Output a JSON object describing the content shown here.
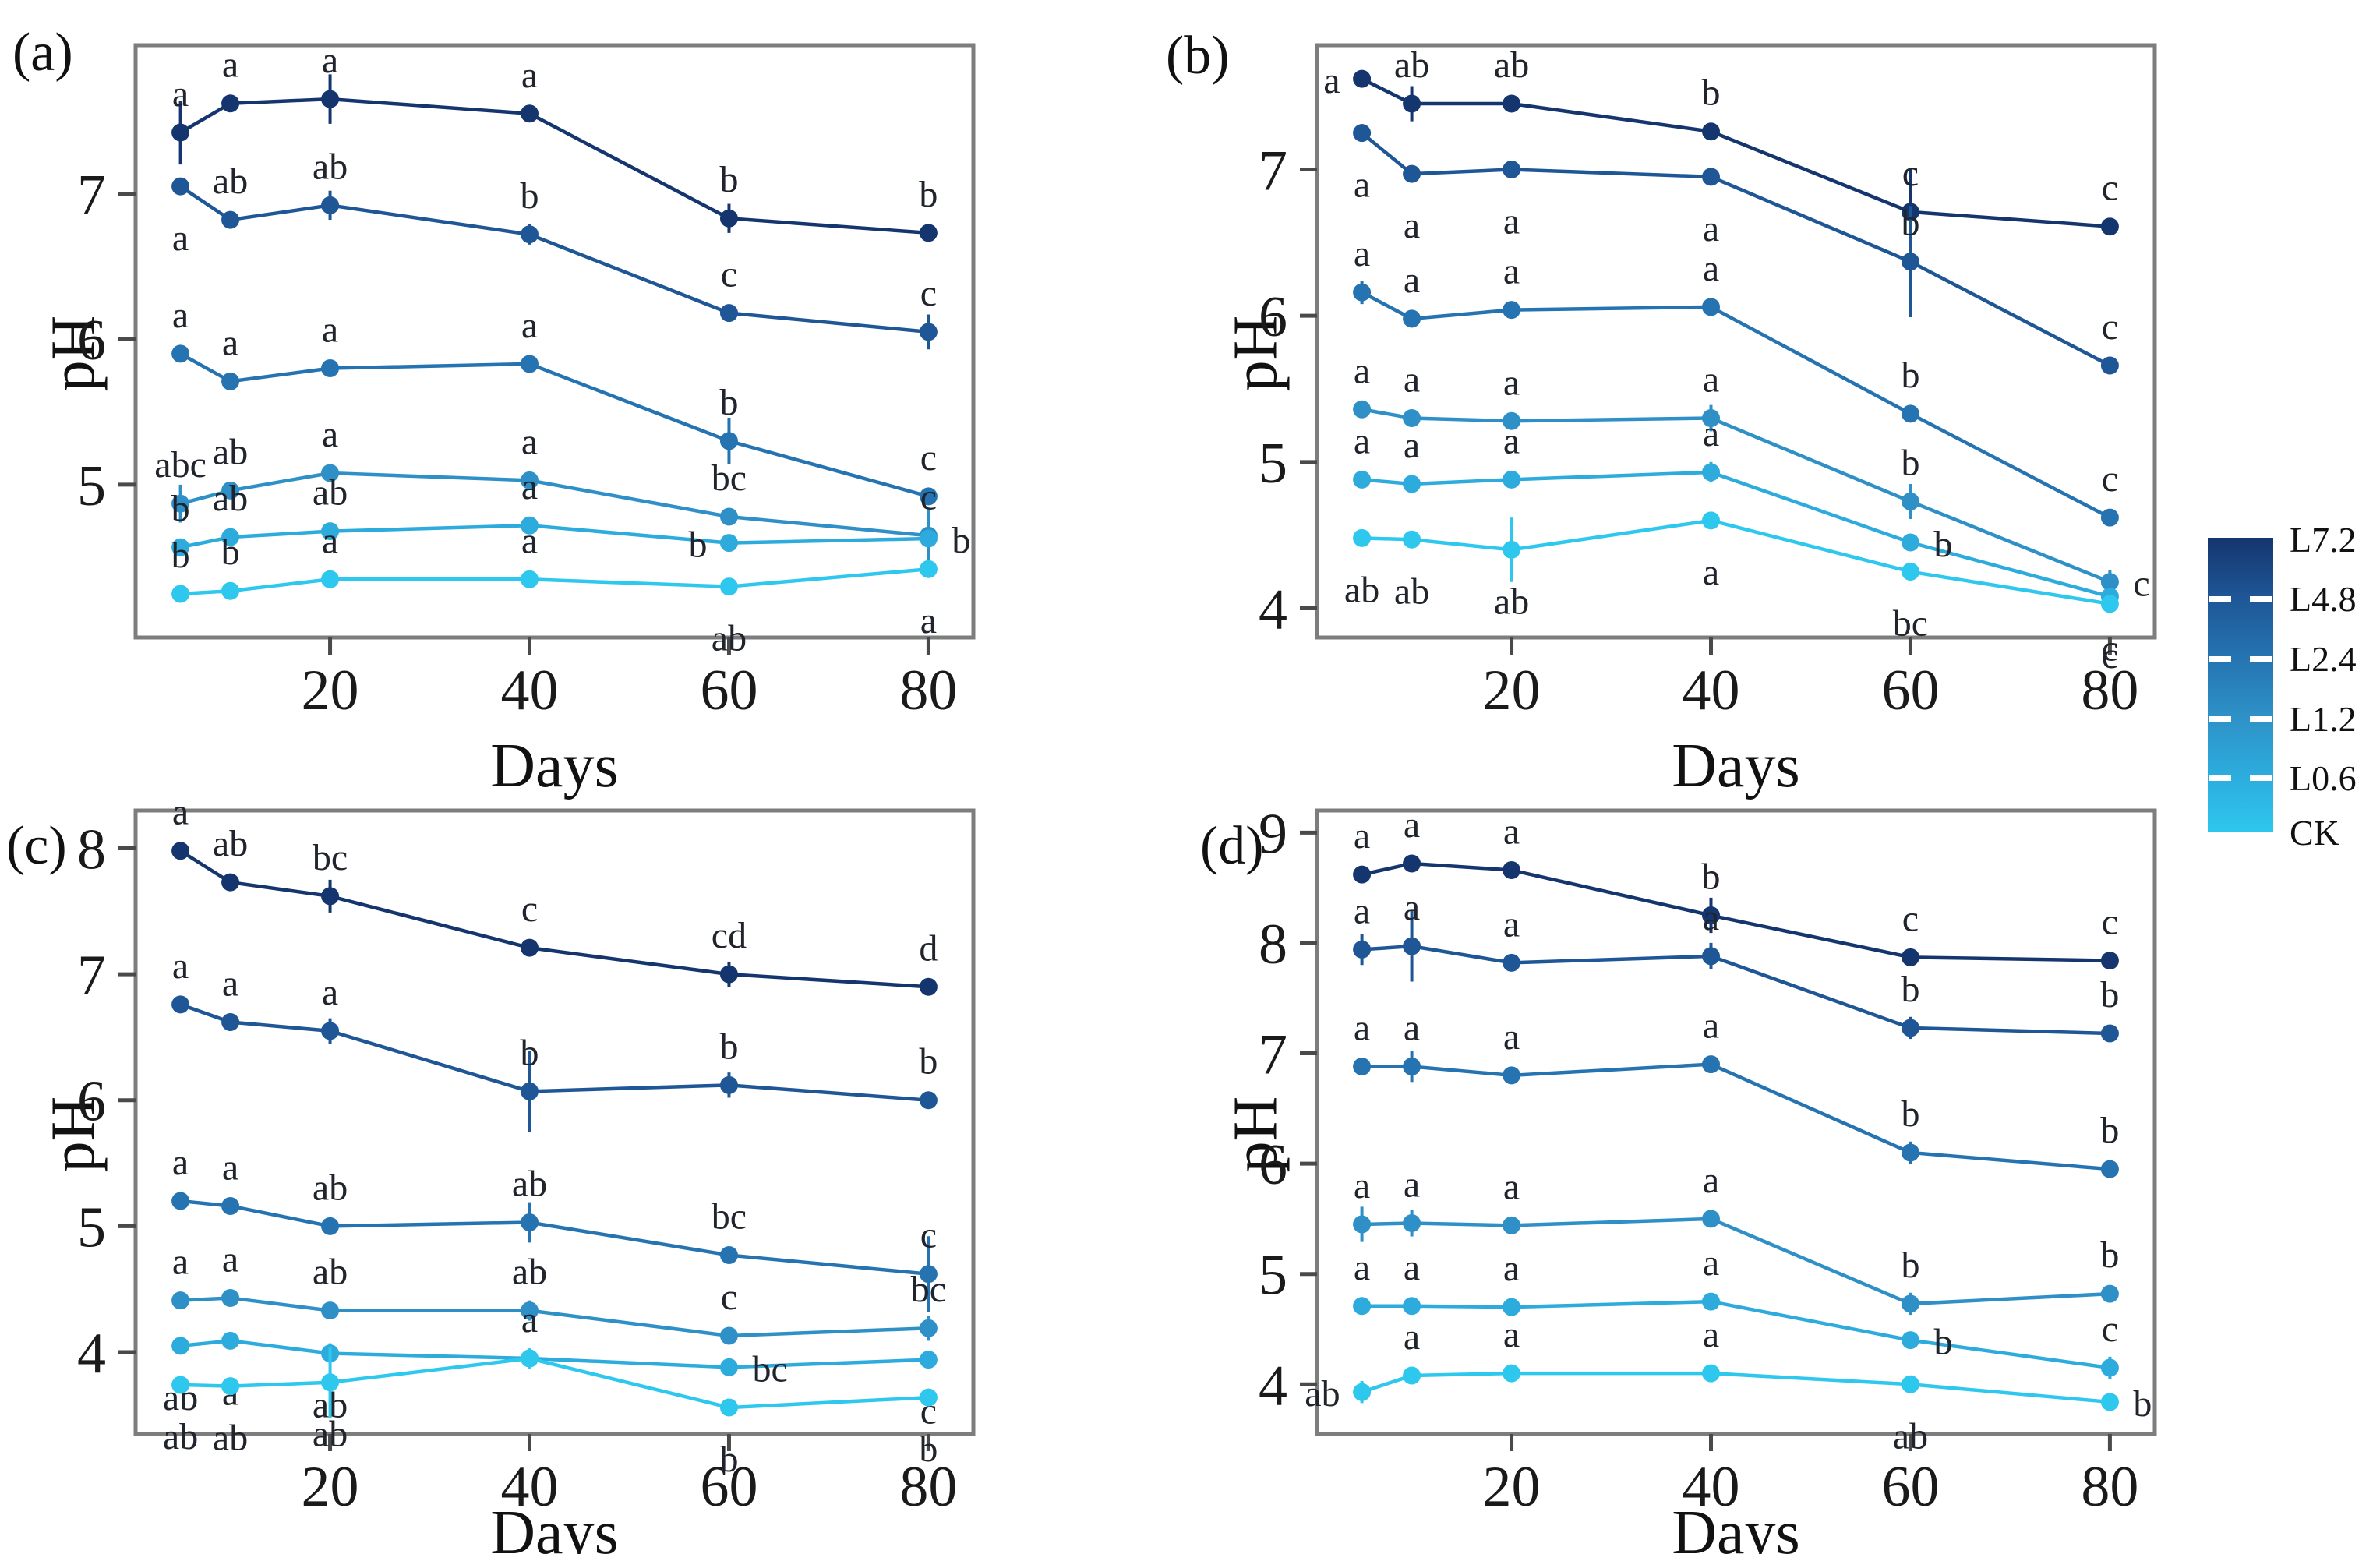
{
  "axis": {
    "x_label": "Days",
    "y_label": "pH",
    "x_tick_labels": [
      "20",
      "40",
      "60",
      "80"
    ]
  },
  "legend": {
    "items": [
      {
        "label": "L7.2",
        "color": "#15356e"
      },
      {
        "label": "L4.8",
        "color": "#1e5696"
      },
      {
        "label": "L2.4",
        "color": "#2573b1"
      },
      {
        "label": "L1.2",
        "color": "#2e90c6"
      },
      {
        "label": "L0.6",
        "color": "#2cabdc"
      },
      {
        "label": "CK",
        "color": "#2ec7ee"
      }
    ],
    "tick_color": "#ffffff"
  },
  "chart_data": [
    {
      "id": "a",
      "title": "(a)",
      "type": "line",
      "xlabel": "Days",
      "ylabel": "pH",
      "x": [
        5,
        10,
        20,
        40,
        60,
        80
      ],
      "xticks": [
        20,
        40,
        60,
        80
      ],
      "xlim": [
        0.5,
        84.5
      ],
      "yticks": [
        5,
        6,
        7
      ],
      "ylim": [
        3.95,
        8.02
      ],
      "grid": false,
      "legend_position": "figure-right",
      "series": [
        {
          "name": "L7.2",
          "color": "#15356e",
          "values": [
            7.42,
            7.62,
            7.65,
            7.55,
            6.83,
            6.73
          ],
          "err": [
            0.22,
            0.05,
            0.17,
            0.05,
            0.1,
            0.04
          ],
          "letters": [
            "a",
            "a",
            "a",
            "a",
            "b",
            "b"
          ],
          "letter_pos": [
            "a",
            "a",
            "a",
            "a",
            "a",
            "a"
          ]
        },
        {
          "name": "L4.8",
          "color": "#1e5696",
          "values": [
            7.05,
            6.82,
            6.92,
            6.72,
            6.18,
            6.05
          ],
          "err": [
            0.04,
            0.05,
            0.1,
            0.07,
            0.06,
            0.12
          ],
          "letters": [
            "a",
            "ab",
            "ab",
            "b",
            "c",
            "c"
          ],
          "letter_pos": [
            "b",
            "a",
            "a",
            "a",
            "a",
            "a"
          ]
        },
        {
          "name": "L2.4",
          "color": "#2573b1",
          "values": [
            5.9,
            5.71,
            5.8,
            5.83,
            5.3,
            4.92
          ],
          "err": [
            0.05,
            0.04,
            0.05,
            0.05,
            0.16,
            0.06
          ],
          "letters": [
            "a",
            "a",
            "a",
            "a",
            "b",
            "c"
          ],
          "letter_pos": [
            "a",
            "a",
            "a",
            "a",
            "a",
            "a"
          ]
        },
        {
          "name": "L1.2",
          "color": "#2e90c6",
          "values": [
            4.87,
            4.96,
            5.08,
            5.03,
            4.78,
            4.65
          ],
          "err": [
            0.13,
            0.05,
            0.05,
            0.05,
            0.05,
            0.18
          ],
          "letters": [
            "abc",
            "ab",
            "a",
            "a",
            "bc",
            "c"
          ],
          "letter_pos": [
            "a",
            "a",
            "a",
            "a",
            "a",
            "a"
          ]
        },
        {
          "name": "L0.6",
          "color": "#2cabdc",
          "values": [
            4.57,
            4.64,
            4.68,
            4.72,
            4.6,
            4.63
          ],
          "err": [
            0.05,
            0.04,
            0.04,
            0.04,
            0.05,
            0.05
          ],
          "letters": [
            "b",
            "ab",
            "ab",
            "a",
            "b",
            "b"
          ],
          "letter_pos": [
            "a",
            "a",
            "a",
            "a",
            "l",
            "r"
          ]
        },
        {
          "name": "CK",
          "color": "#2ec7ee",
          "values": [
            4.25,
            4.27,
            4.35,
            4.35,
            4.3,
            4.42
          ],
          "err": [
            0.04,
            0.04,
            0.04,
            0.04,
            0.05,
            0.04
          ],
          "letters": [
            "b",
            "b",
            "a",
            "a",
            "ab",
            "a"
          ],
          "letter_pos": [
            "a",
            "a",
            "a",
            "a",
            "b",
            "b"
          ]
        }
      ]
    },
    {
      "id": "b",
      "title": "(b)",
      "type": "line",
      "xlabel": "Days",
      "ylabel": "pH",
      "x": [
        5,
        10,
        20,
        40,
        60,
        80
      ],
      "xticks": [
        20,
        40,
        60,
        80
      ],
      "xlim": [
        0.5,
        84.5
      ],
      "yticks": [
        4,
        5,
        6,
        7
      ],
      "ylim": [
        3.8,
        7.85
      ],
      "grid": false,
      "legend_position": "figure-right",
      "series": [
        {
          "name": "L7.2",
          "color": "#15356e",
          "values": [
            7.62,
            7.45,
            7.45,
            7.26,
            6.71,
            6.61
          ],
          "err": [
            0.04,
            0.12,
            0.05,
            0.05,
            0.3,
            0.05
          ],
          "letters": [
            "a",
            "ab",
            "ab",
            "b",
            "c",
            "c"
          ],
          "letter_pos": [
            "l",
            "a",
            "a",
            "a",
            "a",
            "a"
          ]
        },
        {
          "name": "L4.8",
          "color": "#1e5696",
          "values": [
            7.25,
            6.97,
            7.0,
            6.95,
            6.37,
            5.66
          ],
          "err": [
            0.06,
            0.05,
            0.05,
            0.05,
            0.38,
            0.06
          ],
          "letters": [
            "a",
            "a",
            "a",
            "a",
            "b",
            "c"
          ],
          "letter_pos": [
            "b",
            "b",
            "b",
            "b",
            "a",
            "a"
          ]
        },
        {
          "name": "L2.4",
          "color": "#2573b1",
          "values": [
            6.16,
            5.98,
            6.04,
            6.06,
            5.33,
            4.62
          ],
          "err": [
            0.08,
            0.06,
            0.05,
            0.05,
            0.05,
            0.05
          ],
          "letters": [
            "a",
            "a",
            "a",
            "a",
            "b",
            "c"
          ],
          "letter_pos": [
            "a",
            "a",
            "a",
            "a",
            "a",
            "a"
          ]
        },
        {
          "name": "L1.2",
          "color": "#2e90c6",
          "values": [
            5.36,
            5.3,
            5.28,
            5.3,
            4.73,
            4.18
          ],
          "err": [
            0.06,
            0.05,
            0.05,
            0.09,
            0.12,
            0.08
          ],
          "letters": [
            "a",
            "a",
            "a",
            "a",
            "b",
            "c"
          ],
          "letter_pos": [
            "a",
            "a",
            "a",
            "a",
            "a",
            "r"
          ]
        },
        {
          "name": "L0.6",
          "color": "#2cabdc",
          "values": [
            4.88,
            4.85,
            4.88,
            4.93,
            4.45,
            4.08
          ],
          "err": [
            0.05,
            0.05,
            0.05,
            0.07,
            0.05,
            0.05
          ],
          "letters": [
            "a",
            "a",
            "a",
            "a",
            "b",
            "c"
          ],
          "letter_pos": [
            "a",
            "a",
            "a",
            "a",
            "r",
            "b"
          ]
        },
        {
          "name": "CK",
          "color": "#2ec7ee",
          "values": [
            4.48,
            4.47,
            4.4,
            4.6,
            4.25,
            4.03
          ],
          "err": [
            0.05,
            0.06,
            0.22,
            0.05,
            0.06,
            0.05
          ],
          "letters": [
            "ab",
            "ab",
            "ab",
            "a",
            "bc",
            "c"
          ],
          "letter_pos": [
            "b",
            "b",
            "b",
            "b",
            "b",
            "b"
          ]
        }
      ]
    },
    {
      "id": "c",
      "title": "(c)",
      "type": "line",
      "xlabel": "Days",
      "ylabel": "pH",
      "x": [
        5,
        10,
        20,
        40,
        60,
        80
      ],
      "xticks": [
        20,
        40,
        60,
        80
      ],
      "xlim": [
        0.5,
        84.5
      ],
      "yticks": [
        4,
        5,
        6,
        7,
        8
      ],
      "ylim": [
        3.35,
        8.3
      ],
      "grid": false,
      "legend_position": "figure-right",
      "series": [
        {
          "name": "L7.2",
          "color": "#15356e",
          "values": [
            7.98,
            7.73,
            7.62,
            7.21,
            7.0,
            6.9
          ],
          "err": [
            0.06,
            0.05,
            0.13,
            0.05,
            0.1,
            0.05
          ],
          "letters": [
            "a",
            "ab",
            "bc",
            "c",
            "cd",
            "d"
          ],
          "letter_pos": [
            "a",
            "a",
            "a",
            "a",
            "a",
            "a"
          ]
        },
        {
          "name": "L4.8",
          "color": "#1e5696",
          "values": [
            6.76,
            6.62,
            6.55,
            6.07,
            6.12,
            6.0
          ],
          "err": [
            0.05,
            0.07,
            0.1,
            0.32,
            0.1,
            0.05
          ],
          "letters": [
            "a",
            "a",
            "a",
            "b",
            "b",
            "b"
          ],
          "letter_pos": [
            "a",
            "a",
            "a",
            "a",
            "a",
            "a"
          ]
        },
        {
          "name": "L2.4",
          "color": "#2573b1",
          "values": [
            5.2,
            5.16,
            5.0,
            5.03,
            4.77,
            4.62
          ],
          "err": [
            0.05,
            0.05,
            0.06,
            0.16,
            0.06,
            0.3
          ],
          "letters": [
            "a",
            "a",
            "ab",
            "ab",
            "bc",
            "c"
          ],
          "letter_pos": [
            "a",
            "a",
            "a",
            "a",
            "a",
            "a"
          ]
        },
        {
          "name": "L1.2",
          "color": "#2e90c6",
          "values": [
            4.41,
            4.43,
            4.33,
            4.33,
            4.13,
            4.19
          ],
          "err": [
            0.07,
            0.05,
            0.05,
            0.08,
            0.05,
            0.1
          ],
          "letters": [
            "a",
            "a",
            "ab",
            "ab",
            "c",
            "bc"
          ],
          "letter_pos": [
            "a",
            "a",
            "a",
            "a",
            "a",
            "a"
          ]
        },
        {
          "name": "L0.6",
          "color": "#2cabdc",
          "values": [
            4.05,
            4.09,
            3.99,
            3.95,
            3.88,
            3.94
          ],
          "err": [
            0.05,
            0.05,
            0.08,
            0.05,
            0.05,
            0.05
          ],
          "letters": [
            "ab",
            "a",
            "ab",
            "a",
            "bc",
            "c"
          ],
          "letter_pos": [
            "b",
            "b",
            "b",
            "a",
            "r",
            "b"
          ]
        },
        {
          "name": "CK",
          "color": "#2ec7ee",
          "values": [
            3.74,
            3.73,
            3.76,
            3.95,
            3.56,
            3.64
          ],
          "err": [
            0.05,
            0.05,
            0.28,
            0.08,
            0.05,
            0.05
          ],
          "letters": [
            "ab",
            "ab",
            "ab",
            "a",
            "b",
            "b"
          ],
          "letter_pos": [
            "b",
            "b",
            "b",
            "a",
            "b",
            "b"
          ]
        }
      ]
    },
    {
      "id": "d",
      "title": "(d)",
      "type": "line",
      "xlabel": "Days",
      "ylabel": "pH",
      "x": [
        5,
        10,
        20,
        40,
        60,
        80
      ],
      "xticks": [
        20,
        40,
        60,
        80
      ],
      "xlim": [
        0.5,
        84.5
      ],
      "yticks": [
        4,
        5,
        6,
        7,
        8,
        9
      ],
      "ylim": [
        3.55,
        9.2
      ],
      "grid": false,
      "legend_position": "figure-right",
      "series": [
        {
          "name": "L7.2",
          "color": "#15356e",
          "values": [
            8.62,
            8.72,
            8.66,
            8.25,
            7.87,
            7.84
          ],
          "err": [
            0.06,
            0.06,
            0.05,
            0.16,
            0.08,
            0.05
          ],
          "letters": [
            "a",
            "a",
            "a",
            "b",
            "c",
            "c"
          ],
          "letter_pos": [
            "a",
            "a",
            "a",
            "a",
            "a",
            "a"
          ]
        },
        {
          "name": "L4.8",
          "color": "#1e5696",
          "values": [
            7.94,
            7.97,
            7.82,
            7.88,
            7.23,
            7.18
          ],
          "err": [
            0.14,
            0.32,
            0.06,
            0.12,
            0.1,
            0.05
          ],
          "letters": [
            "a",
            "a",
            "a",
            "a",
            "b",
            "b"
          ],
          "letter_pos": [
            "a",
            "a",
            "a",
            "a",
            "a",
            "a"
          ]
        },
        {
          "name": "L2.4",
          "color": "#2573b1",
          "values": [
            6.88,
            6.88,
            6.8,
            6.9,
            6.1,
            5.95
          ],
          "err": [
            0.05,
            0.14,
            0.06,
            0.05,
            0.1,
            0.05
          ],
          "letters": [
            "a",
            "a",
            "a",
            "a",
            "b",
            "b"
          ],
          "letter_pos": [
            "a",
            "a",
            "a",
            "a",
            "a",
            "a"
          ]
        },
        {
          "name": "L1.2",
          "color": "#2e90c6",
          "values": [
            5.45,
            5.46,
            5.44,
            5.5,
            4.73,
            4.82
          ],
          "err": [
            0.16,
            0.12,
            0.05,
            0.06,
            0.1,
            0.05
          ],
          "letters": [
            "a",
            "a",
            "a",
            "a",
            "b",
            "b"
          ],
          "letter_pos": [
            "a",
            "a",
            "a",
            "a",
            "a",
            "a"
          ]
        },
        {
          "name": "L0.6",
          "color": "#2cabdc",
          "values": [
            4.71,
            4.71,
            4.7,
            4.75,
            4.4,
            4.15
          ],
          "err": [
            0.05,
            0.07,
            0.05,
            0.05,
            0.05,
            0.1
          ],
          "letters": [
            "a",
            "a",
            "a",
            "a",
            "b",
            "c"
          ],
          "letter_pos": [
            "a",
            "a",
            "a",
            "a",
            "r",
            "a"
          ]
        },
        {
          "name": "CK",
          "color": "#2ec7ee",
          "values": [
            3.93,
            4.08,
            4.1,
            4.1,
            4.0,
            3.84
          ],
          "err": [
            0.1,
            0.05,
            0.05,
            0.05,
            0.05,
            0.05
          ],
          "letters": [
            "ab",
            "a",
            "a",
            "a",
            "ab",
            "b"
          ],
          "letter_pos": [
            "l",
            "a",
            "a",
            "a",
            "b",
            "r"
          ]
        }
      ]
    }
  ]
}
